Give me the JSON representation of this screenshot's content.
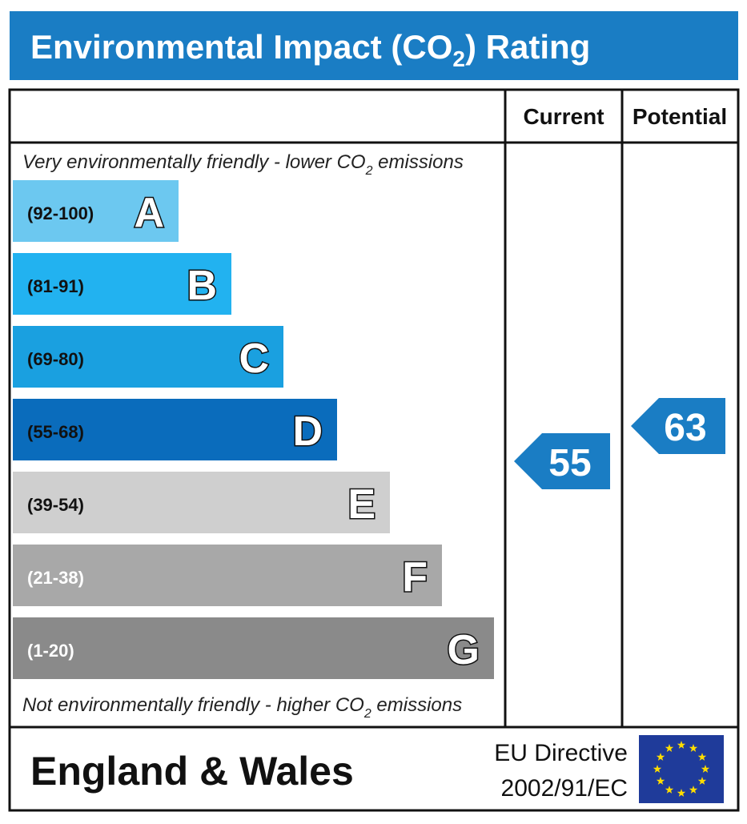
{
  "header": {
    "title": {
      "before": "Environmental Impact (CO",
      "sub": "2",
      "after": ") Rating"
    }
  },
  "columns": {
    "current": "Current",
    "potential": "Potential"
  },
  "notes": {
    "top": {
      "before": "Very environmentally friendly - lower CO",
      "sub": "2",
      "after": " emissions"
    },
    "bottom": {
      "before": "Not environmentally friendly - higher CO",
      "sub": "2",
      "after": " emissions"
    }
  },
  "bands": [
    {
      "range": "(92-100)",
      "letter": "A",
      "color": "#6cc8f0"
    },
    {
      "range": "(81-91)",
      "letter": "B",
      "color": "#22b2f0"
    },
    {
      "range": "(69-80)",
      "letter": "C",
      "color": "#1aa0e0"
    },
    {
      "range": "(55-68)",
      "letter": "D",
      "color": "#0a6cbc"
    },
    {
      "range": "(39-54)",
      "letter": "E",
      "color": "#cfcfcf"
    },
    {
      "range": "(21-38)",
      "letter": "F",
      "color": "#a8a8a8"
    },
    {
      "range": "(1-20)",
      "letter": "G",
      "color": "#8a8a8a"
    }
  ],
  "ratings": {
    "current": 55,
    "potential": 63
  },
  "footer": {
    "region": "England & Wales",
    "directive": [
      "EU Directive",
      "2002/91/EC"
    ]
  }
}
